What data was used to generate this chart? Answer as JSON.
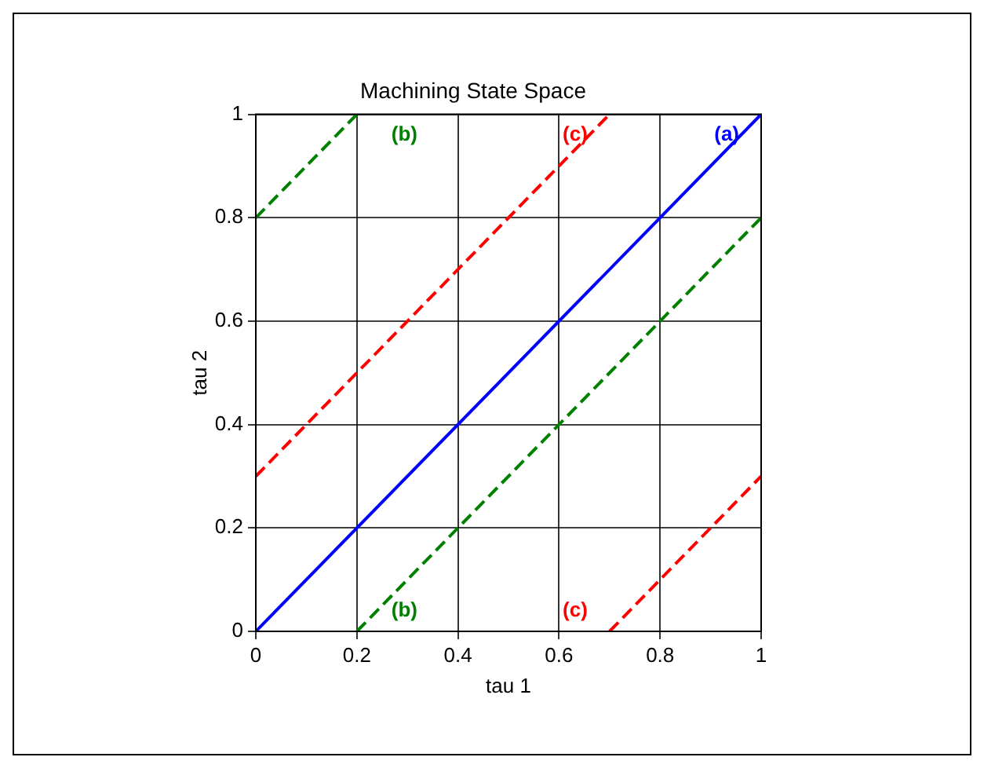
{
  "chart_data": {
    "type": "line",
    "title": "Machining State Space",
    "xlabel": "tau 1",
    "ylabel": "tau 2",
    "xlim": [
      0,
      1
    ],
    "ylim": [
      0,
      1
    ],
    "xticks": [
      0,
      0.2,
      0.4,
      0.6,
      0.8,
      1
    ],
    "yticks": [
      0,
      0.2,
      0.4,
      0.6,
      0.8,
      1
    ],
    "grid": true,
    "legend": false,
    "marker": "none",
    "series": [
      {
        "name": "(a)",
        "color": "#0000ff",
        "line_style": "solid",
        "x": [
          0,
          1
        ],
        "values": [
          0,
          1
        ]
      },
      {
        "name": "(b)",
        "color": "#008000",
        "line_style": "dashed",
        "x": [
          0,
          0.2
        ],
        "values": [
          0.8,
          1
        ]
      },
      {
        "name": "(b)",
        "color": "#008000",
        "line_style": "dashed",
        "x": [
          0.2,
          1
        ],
        "values": [
          0,
          0.8
        ]
      },
      {
        "name": "(c)",
        "color": "#ff0000",
        "line_style": "dashed",
        "x": [
          0,
          0.7
        ],
        "values": [
          0.3,
          1
        ]
      },
      {
        "name": "(c)",
        "color": "#ff0000",
        "line_style": "dashed",
        "x": [
          0.7,
          1
        ],
        "values": [
          0,
          0.3
        ]
      }
    ]
  }
}
